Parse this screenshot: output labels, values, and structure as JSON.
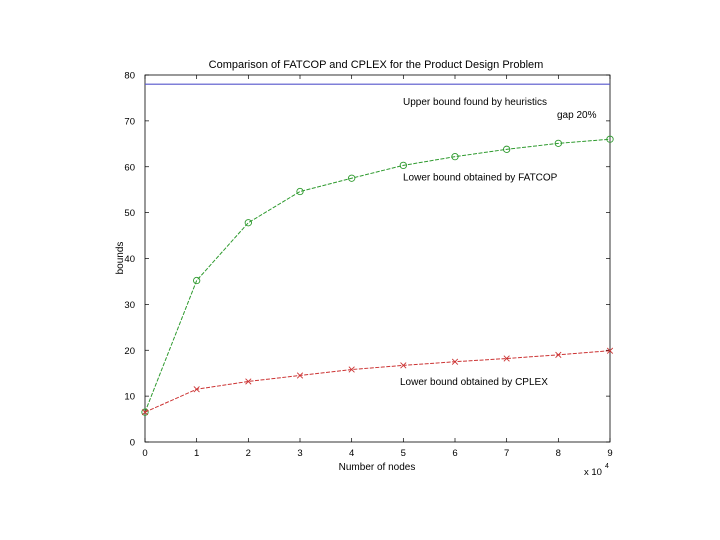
{
  "chart_data": {
    "type": "line",
    "title": "Comparison of FATCOP and CPLEX for the Product Design Problem",
    "xlabel": "Number of nodes",
    "ylabel": "bounds",
    "x_multiplier": "x 10",
    "x_multiplier_exp": "4",
    "xlim": [
      0,
      9
    ],
    "ylim": [
      0,
      80
    ],
    "x_ticks": [
      0,
      1,
      2,
      3,
      4,
      5,
      6,
      7,
      8,
      9
    ],
    "y_ticks": [
      0,
      10,
      20,
      30,
      40,
      50,
      60,
      70,
      80
    ],
    "grid": false,
    "legend": "none",
    "series": [
      {
        "name": "Upper bound found by heuristics",
        "color": "#5555cc",
        "marker": "none",
        "x": [
          0,
          9
        ],
        "values": [
          78,
          78
        ]
      },
      {
        "name": "Lower bound obtained by FATCOP",
        "color": "#2e9a2e",
        "marker": "circle",
        "x": [
          0,
          1,
          2,
          3,
          4,
          5,
          6,
          7,
          8,
          9
        ],
        "values": [
          6.5,
          35.2,
          47.8,
          54.6,
          57.5,
          60.3,
          62.2,
          63.8,
          65.1,
          66.0
        ]
      },
      {
        "name": "Lower bound obtained by CPLEX",
        "color": "#cc3333",
        "marker": "x",
        "x": [
          0,
          1,
          2,
          3,
          4,
          5,
          6,
          7,
          8,
          9
        ],
        "values": [
          6.5,
          11.5,
          13.2,
          14.5,
          15.8,
          16.7,
          17.5,
          18.2,
          19.0,
          19.9
        ]
      }
    ],
    "annotations": [
      {
        "text": "gap 20%"
      }
    ]
  }
}
